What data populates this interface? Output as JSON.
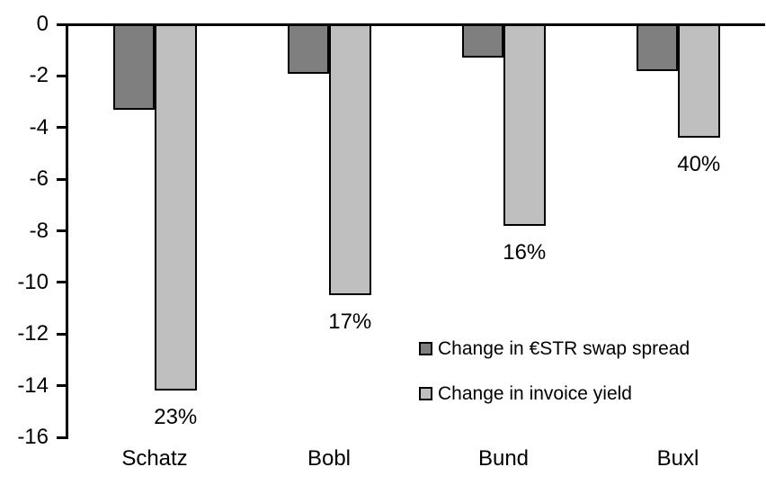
{
  "chart_data": {
    "type": "bar",
    "title": "",
    "categories": [
      "Schatz",
      "Bobl",
      "Bund",
      "Buxl"
    ],
    "series": [
      {
        "name": "Change in €STR swap spread",
        "key": "estr-swap-spread",
        "color": "#7f7f7f",
        "values": [
          -3.3,
          -1.9,
          -1.3,
          -1.8
        ]
      },
      {
        "name": "Change in invoice yield",
        "key": "invoice-yield",
        "color": "#bfbfbf",
        "values": [
          -14.2,
          -10.5,
          -7.8,
          -4.4
        ],
        "point_labels": [
          "23%",
          "17%",
          "16%",
          "40%"
        ]
      }
    ],
    "xlabel": "",
    "ylabel": "",
    "ylim": [
      -16,
      0
    ],
    "yticks": [
      0,
      -2,
      -4,
      -6,
      -8,
      -10,
      -12,
      -14,
      -16
    ],
    "grid": false,
    "legend_position": "inside-right-middle",
    "axis_color": "#000000",
    "bar_border_color": "#000000",
    "background": "#ffffff"
  }
}
